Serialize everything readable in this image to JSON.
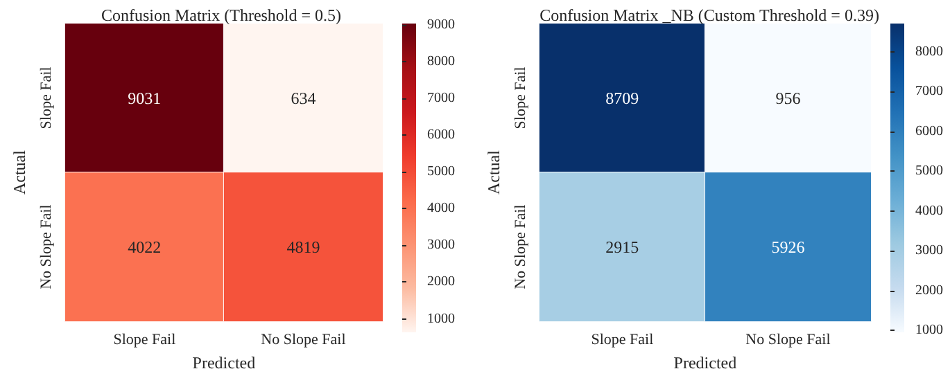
{
  "chart_data": [
    {
      "type": "heatmap",
      "title": "Confusion Matrix (Threshold = 0.5)",
      "xlabel": "Predicted",
      "ylabel": "Actual",
      "categories": [
        "Slope Fail",
        "No Slope Fail"
      ],
      "y_categories": [
        "Slope Fail",
        "No Slope Fail"
      ],
      "cells": [
        [
          9031,
          634
        ],
        [
          4022,
          4819
        ]
      ],
      "clim": [
        634,
        9031
      ],
      "cticks": [
        1000,
        2000,
        3000,
        4000,
        5000,
        6000,
        7000,
        8000,
        9000
      ],
      "data_labels": true
    },
    {
      "type": "heatmap",
      "title": "Confusion Matrix _NB (Custom Threshold = 0.39)",
      "xlabel": "Predicted",
      "ylabel": "Actual",
      "categories": [
        "Slope Fail",
        "No Slope Fail"
      ],
      "y_categories": [
        "Slope Fail",
        "No Slope Fail"
      ],
      "cells": [
        [
          8709,
          956
        ],
        [
          2915,
          5926
        ]
      ],
      "clim": [
        956,
        8709
      ],
      "cticks": [
        1000,
        2000,
        3000,
        4000,
        5000,
        6000,
        7000,
        8000
      ],
      "data_labels": true
    }
  ]
}
